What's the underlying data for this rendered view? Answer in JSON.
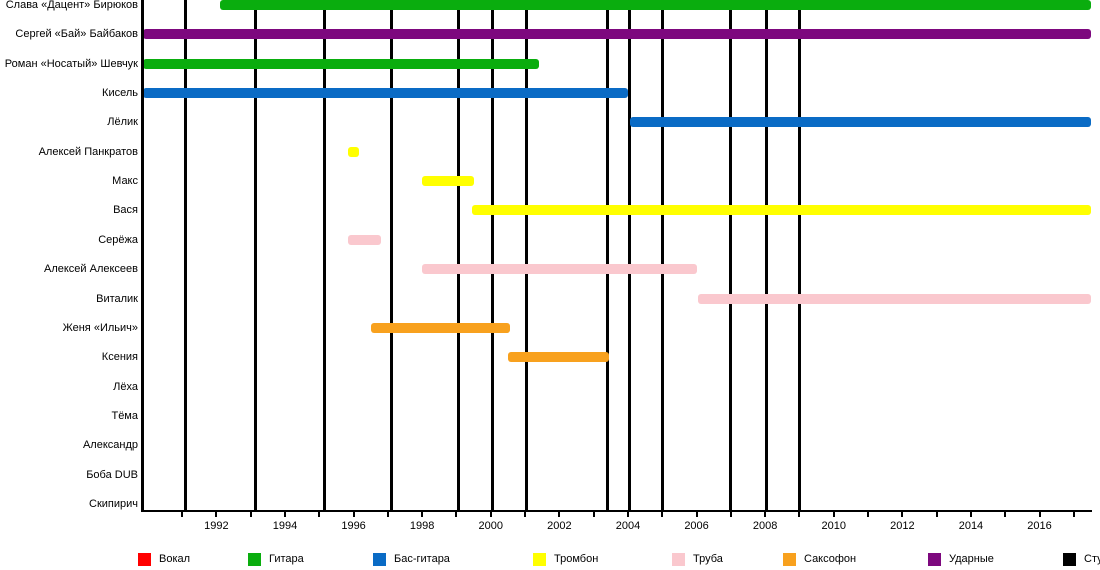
{
  "chart_data": {
    "type": "timeline",
    "title": "",
    "axis": {
      "year_min": 1989.86,
      "year_max": 2017.5,
      "tick_start": 1991,
      "tick_end": 2017,
      "tick_step": 1,
      "label_years": [
        1992,
        1994,
        1996,
        1998,
        2000,
        2002,
        2004,
        2006,
        2008,
        2010,
        2012,
        2014,
        2016
      ]
    },
    "legend": [
      {
        "id": "vocal",
        "label": "Вокал",
        "color": "#ff0000"
      },
      {
        "id": "guitar",
        "label": "Гитара",
        "color": "#0aad0e"
      },
      {
        "id": "bass",
        "label": "Бас-гитара",
        "color": "#0a6bc5"
      },
      {
        "id": "trombone",
        "label": "Тромбон",
        "color": "#ffff00"
      },
      {
        "id": "trumpet",
        "label": "Труба",
        "color": "#fac8ce"
      },
      {
        "id": "sax",
        "label": "Саксофон",
        "color": "#f8a11e"
      },
      {
        "id": "drums",
        "label": "Ударные",
        "color": "#7d087e"
      },
      {
        "id": "albums",
        "label": "Студийные альбомы",
        "color": "#000000"
      }
    ],
    "album_release_years": [
      1991.1,
      1993.15,
      1995.15,
      1997.1,
      1999.05,
      2000.05,
      2001.05,
      2003.4,
      2004.05,
      2005.0,
      2007.0,
      2008.05,
      2009.0
    ],
    "members": [
      {
        "name": "Слава «Дацент» Бирюков",
        "bars": [
          {
            "role": "guitar",
            "start": 1992.1,
            "end": 2017.5
          }
        ]
      },
      {
        "name": "Сергей «Бай» Байбаков",
        "bars": [
          {
            "role": "drums",
            "start": 1989.86,
            "end": 2017.5
          }
        ]
      },
      {
        "name": "Роман «Носатый» Шевчук",
        "bars": [
          {
            "role": "guitar",
            "start": 1989.86,
            "end": 2001.4
          }
        ]
      },
      {
        "name": "Кисель",
        "bars": [
          {
            "role": "bass",
            "start": 1989.86,
            "end": 2004.0
          }
        ]
      },
      {
        "name": "Лёлик",
        "bars": [
          {
            "role": "bass",
            "start": 2004.05,
            "end": 2017.5
          }
        ]
      },
      {
        "name": "Алексей Панкратов",
        "bars": [
          {
            "role": "trombone",
            "start": 1995.85,
            "end": 1996.15
          }
        ]
      },
      {
        "name": "Макс",
        "bars": [
          {
            "role": "trombone",
            "start": 1998.0,
            "end": 1999.5
          }
        ]
      },
      {
        "name": "Вася",
        "bars": [
          {
            "role": "trombone",
            "start": 1999.45,
            "end": 2017.5
          }
        ]
      },
      {
        "name": "Серёжа",
        "bars": [
          {
            "role": "trumpet",
            "start": 1995.85,
            "end": 1996.8
          }
        ]
      },
      {
        "name": "Алексей Алексеев",
        "bars": [
          {
            "role": "trumpet",
            "start": 1998.0,
            "end": 2006.0
          }
        ]
      },
      {
        "name": "Виталик",
        "bars": [
          {
            "role": "trumpet",
            "start": 2006.05,
            "end": 2017.5
          }
        ]
      },
      {
        "name": "Женя «Ильич»",
        "bars": [
          {
            "role": "sax",
            "start": 1996.5,
            "end": 2000.55
          }
        ]
      },
      {
        "name": "Ксения",
        "bars": [
          {
            "role": "sax",
            "start": 2000.5,
            "end": 2003.45
          }
        ]
      },
      {
        "name": "Лёха",
        "bars": []
      },
      {
        "name": "Тёма",
        "bars": []
      },
      {
        "name": "Александр",
        "bars": []
      },
      {
        "name": "Боба DUB",
        "bars": []
      },
      {
        "name": "Скипирич",
        "bars": []
      }
    ]
  }
}
